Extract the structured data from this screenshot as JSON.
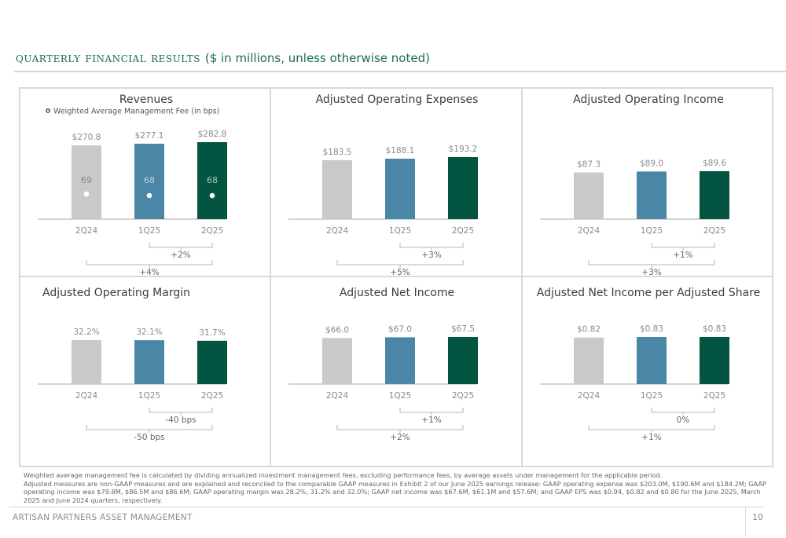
{
  "header": {
    "title": "QUARTERLY FINANCIAL RESULTS",
    "subtitle": "($ in millions, unless otherwise noted)"
  },
  "colors": {
    "prior_year": "#c8c9cb",
    "prior_quarter": "#4a86a6",
    "current_quarter": "#045442",
    "title_green": "#1d6b57"
  },
  "chart_data": [
    {
      "type": "bar",
      "id": "revenues",
      "title": "Revenues",
      "categories": [
        "2Q24",
        "1Q25",
        "2Q25"
      ],
      "values": [
        270.8,
        277.1,
        282.8
      ],
      "value_labels": [
        "$270.8",
        "$277.1",
        "$282.8"
      ],
      "ylim": [
        0,
        282.8
      ],
      "legend": "Weighted Average Management Fee (in bps)",
      "secondary": {
        "name": "Weighted Average Management Fee (in bps)",
        "type": "scatter",
        "values": [
          69,
          68,
          68
        ],
        "labels": [
          "69",
          "68",
          "68"
        ]
      },
      "comparisons": [
        {
          "from": "1Q25",
          "to": "2Q25",
          "label": "+2%"
        },
        {
          "from": "2Q24",
          "to": "2Q25",
          "label": "+4%"
        }
      ]
    },
    {
      "type": "bar",
      "id": "adj-opex",
      "title": "Adjusted Operating Expenses",
      "categories": [
        "2Q24",
        "1Q25",
        "2Q25"
      ],
      "values": [
        183.5,
        188.1,
        193.2
      ],
      "value_labels": [
        "$183.5",
        "$188.1",
        "$193.2"
      ],
      "comparisons": [
        {
          "from": "1Q25",
          "to": "2Q25",
          "label": "+3%"
        },
        {
          "from": "2Q24",
          "to": "2Q25",
          "label": "+5%"
        }
      ]
    },
    {
      "type": "bar",
      "id": "adj-op-income",
      "title": "Adjusted Operating Income",
      "categories": [
        "2Q24",
        "1Q25",
        "2Q25"
      ],
      "values": [
        87.3,
        89.0,
        89.6
      ],
      "value_labels": [
        "$87.3",
        "$89.0",
        "$89.6"
      ],
      "comparisons": [
        {
          "from": "1Q25",
          "to": "2Q25",
          "label": "+1%"
        },
        {
          "from": "2Q24",
          "to": "2Q25",
          "label": "+3%"
        }
      ]
    },
    {
      "type": "bar",
      "id": "adj-op-margin",
      "title": "Adjusted Operating Margin",
      "categories": [
        "2Q24",
        "1Q25",
        "2Q25"
      ],
      "values": [
        32.2,
        32.1,
        31.7
      ],
      "value_labels": [
        "32.2%",
        "32.1%",
        "31.7%"
      ],
      "comparisons": [
        {
          "from": "1Q25",
          "to": "2Q25",
          "label": "-40 bps"
        },
        {
          "from": "2Q24",
          "to": "2Q25",
          "label": "-50 bps"
        }
      ]
    },
    {
      "type": "bar",
      "id": "adj-net-income",
      "title": "Adjusted Net Income",
      "categories": [
        "2Q24",
        "1Q25",
        "2Q25"
      ],
      "values": [
        66.0,
        67.0,
        67.5
      ],
      "value_labels": [
        "$66.0",
        "$67.0",
        "$67.5"
      ],
      "comparisons": [
        {
          "from": "1Q25",
          "to": "2Q25",
          "label": "+1%"
        },
        {
          "from": "2Q24",
          "to": "2Q25",
          "label": "+2%"
        }
      ]
    },
    {
      "type": "bar",
      "id": "adj-eps",
      "title": "Adjusted Net Income per Adjusted Share",
      "categories": [
        "2Q24",
        "1Q25",
        "2Q25"
      ],
      "values": [
        0.82,
        0.83,
        0.83
      ],
      "value_labels": [
        "$0.82",
        "$0.83",
        "$0.83"
      ],
      "comparisons": [
        {
          "from": "1Q25",
          "to": "2Q25",
          "label": "0%"
        },
        {
          "from": "2Q24",
          "to": "2Q25",
          "label": "+1%"
        }
      ]
    }
  ],
  "footnotes": [
    "Weighted average management fee is calculated by dividing annualized investment management fees, excluding performance fees, by average assets under management for the applicable period.",
    "Adjusted measures are non-GAAP measures and are explained and reconciled to the comparable GAAP measures in Exhibit 2 of our June 2025 earnings release: GAAP operating expense was $203.0M, $190.6M and $184.2M; GAAP operating income was $79.8M, $86.5M and $86.6M; GAAP operating margin was 28.2%, 31.2% and 32.0%; GAAP net income was $67.6M, $61.1M and $57.6M; and GAAP EPS was $0.94, $0.82 and $0.80 for the June 2025, March 2025 and June 2024 quarters, respectively."
  ],
  "footer": {
    "company": "ARTISAN PARTNERS ASSET MANAGEMENT",
    "page_number": "10"
  }
}
